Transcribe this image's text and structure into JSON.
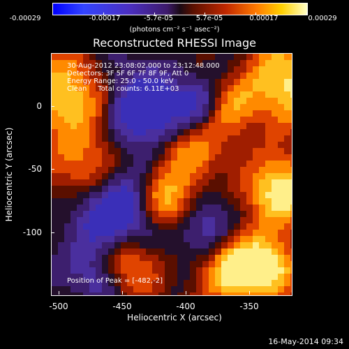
{
  "colorbar": {
    "ticks": [
      "-0.00029",
      "-0.00017",
      "-5.7e-05",
      "5.7e-05",
      "0.00017",
      "0.00029"
    ],
    "unit_label": "(photons cm⁻² s⁻¹ asec⁻²)"
  },
  "title": "Reconstructed RHESSI Image",
  "info_lines": {
    "time": "30-Aug-2012 23:08:02.000 to 23:12:48.000",
    "detectors": "Detectors: 3F 5F 6F 7F 8F 9F, Att 0",
    "energy": "Energy Range: 25.0 - 50.0 keV",
    "clean": "Clean     Total counts: 6.11E+03"
  },
  "peak_text": "Position of Peak = [-482,-2]",
  "y_axis": {
    "label": "Heliocentric Y (arcsec)",
    "ticks": [
      "0",
      "-50",
      "-100"
    ]
  },
  "x_axis": {
    "label": "Heliocentric X (arcsec)",
    "ticks": [
      "-500",
      "-450",
      "-400",
      "-350"
    ]
  },
  "footer": "16-May-2014 09:34"
}
